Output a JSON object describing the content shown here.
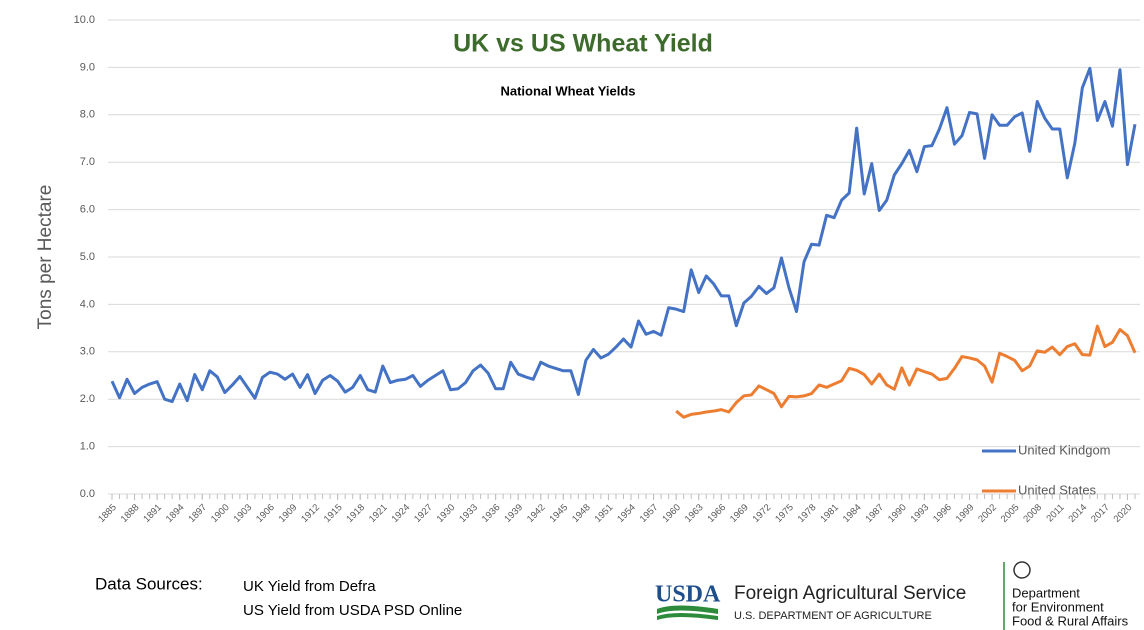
{
  "chart_data": {
    "type": "line",
    "title": "UK vs US Wheat Yield",
    "subtitle": "National Wheat Yields",
    "y_label": "Tons per Hectare",
    "x": [
      1885,
      1886,
      1887,
      1888,
      1889,
      1890,
      1891,
      1892,
      1893,
      1894,
      1895,
      1896,
      1897,
      1898,
      1899,
      1900,
      1901,
      1902,
      1903,
      1904,
      1905,
      1906,
      1907,
      1908,
      1909,
      1910,
      1911,
      1912,
      1913,
      1914,
      1915,
      1916,
      1917,
      1918,
      1919,
      1920,
      1921,
      1922,
      1923,
      1924,
      1925,
      1926,
      1927,
      1928,
      1929,
      1930,
      1931,
      1932,
      1933,
      1934,
      1935,
      1936,
      1937,
      1938,
      1939,
      1940,
      1941,
      1942,
      1943,
      1944,
      1945,
      1946,
      1947,
      1948,
      1949,
      1950,
      1951,
      1952,
      1953,
      1954,
      1955,
      1956,
      1957,
      1958,
      1959,
      1960,
      1961,
      1962,
      1963,
      1964,
      1965,
      1966,
      1967,
      1968,
      1969,
      1970,
      1971,
      1972,
      1973,
      1974,
      1975,
      1976,
      1977,
      1978,
      1979,
      1980,
      1981,
      1982,
      1983,
      1984,
      1985,
      1986,
      1987,
      1988,
      1989,
      1990,
      1991,
      1992,
      1993,
      1994,
      1995,
      1996,
      1997,
      1998,
      1999,
      2000,
      2001,
      2002,
      2003,
      2004,
      2005,
      2006,
      2007,
      2008,
      2009,
      2010,
      2011,
      2012,
      2013,
      2014,
      2015,
      2016,
      2017,
      2018,
      2019,
      2020,
      2021
    ],
    "series": [
      {
        "name": "United Kindgom",
        "color": "#4472c4",
        "values": [
          2.38,
          2.03,
          2.42,
          2.12,
          2.25,
          2.32,
          2.37,
          2.0,
          1.95,
          2.32,
          1.97,
          2.52,
          2.2,
          2.6,
          2.47,
          2.14,
          2.3,
          2.48,
          2.25,
          2.02,
          2.46,
          2.57,
          2.53,
          2.42,
          2.53,
          2.25,
          2.52,
          2.12,
          2.4,
          2.5,
          2.38,
          2.15,
          2.25,
          2.5,
          2.2,
          2.15,
          2.7,
          2.35,
          2.4,
          2.42,
          2.5,
          2.27,
          2.4,
          2.5,
          2.6,
          2.2,
          2.22,
          2.35,
          2.6,
          2.72,
          2.55,
          2.22,
          2.22,
          2.78,
          2.53,
          2.47,
          2.42,
          2.78,
          2.7,
          2.65,
          2.6,
          2.6,
          2.1,
          2.82,
          3.05,
          2.87,
          2.95,
          3.1,
          3.27,
          3.1,
          3.65,
          3.37,
          3.43,
          3.35,
          3.93,
          3.9,
          3.85,
          4.73,
          4.25,
          4.6,
          4.43,
          4.18,
          4.18,
          3.55,
          4.03,
          4.17,
          4.38,
          4.23,
          4.35,
          4.98,
          4.35,
          3.85,
          4.9,
          5.27,
          5.25,
          5.88,
          5.83,
          6.2,
          6.35,
          7.72,
          6.33,
          6.97,
          5.98,
          6.2,
          6.73,
          6.97,
          7.25,
          6.8,
          7.33,
          7.35,
          7.7,
          8.15,
          7.38,
          7.56,
          8.05,
          8.02,
          7.08,
          8.0,
          7.78,
          7.78,
          7.96,
          8.04,
          7.23,
          8.28,
          7.93,
          7.7,
          7.7,
          6.67,
          7.4,
          8.57,
          8.98,
          7.88,
          8.28,
          7.76,
          8.95,
          6.95,
          7.8
        ]
      },
      {
        "name": "United States",
        "color": "#ed7d31",
        "values": [
          null,
          null,
          null,
          null,
          null,
          null,
          null,
          null,
          null,
          null,
          null,
          null,
          null,
          null,
          null,
          null,
          null,
          null,
          null,
          null,
          null,
          null,
          null,
          null,
          null,
          null,
          null,
          null,
          null,
          null,
          null,
          null,
          null,
          null,
          null,
          null,
          null,
          null,
          null,
          null,
          null,
          null,
          null,
          null,
          null,
          null,
          null,
          null,
          null,
          null,
          null,
          null,
          null,
          null,
          null,
          null,
          null,
          null,
          null,
          null,
          null,
          null,
          null,
          null,
          null,
          null,
          null,
          null,
          null,
          null,
          null,
          null,
          null,
          null,
          null,
          1.75,
          1.62,
          1.68,
          1.7,
          1.73,
          1.75,
          1.78,
          1.73,
          1.93,
          2.07,
          2.09,
          2.28,
          2.2,
          2.12,
          1.84,
          2.06,
          2.05,
          2.07,
          2.12,
          2.3,
          2.25,
          2.32,
          2.39,
          2.65,
          2.61,
          2.52,
          2.32,
          2.53,
          2.3,
          2.21,
          2.66,
          2.3,
          2.64,
          2.58,
          2.53,
          2.41,
          2.44,
          2.65,
          2.9,
          2.87,
          2.83,
          2.7,
          2.36,
          2.97,
          2.9,
          2.82,
          2.6,
          2.7,
          3.02,
          2.99,
          3.1,
          2.94,
          3.11,
          3.17,
          2.94,
          2.93,
          3.54,
          3.11,
          3.2,
          3.47,
          3.34,
          2.98
        ]
      }
    ],
    "xlim": [
      1885,
      2021
    ],
    "xticks": [
      1885,
      1888,
      1891,
      1894,
      1897,
      1900,
      1903,
      1906,
      1909,
      1912,
      1915,
      1918,
      1921,
      1924,
      1927,
      1930,
      1933,
      1936,
      1939,
      1942,
      1945,
      1948,
      1951,
      1954,
      1957,
      1960,
      1963,
      1966,
      1969,
      1972,
      1975,
      1978,
      1981,
      1984,
      1987,
      1990,
      1993,
      1996,
      1999,
      2002,
      2005,
      2008,
      2011,
      2014,
      2017,
      2020
    ],
    "ylim": [
      0,
      10
    ],
    "yticks": [
      {
        "value": 0,
        "label": "0.0"
      },
      {
        "value": 1,
        "label": "1.0"
      },
      {
        "value": 2,
        "label": "2.0"
      },
      {
        "value": 3,
        "label": "3.0"
      },
      {
        "value": 4,
        "label": "4.0"
      },
      {
        "value": 5,
        "label": "5.0"
      },
      {
        "value": 6,
        "label": "6.0"
      },
      {
        "value": 7,
        "label": "7.0"
      },
      {
        "value": 8,
        "label": "8.0"
      },
      {
        "value": 9,
        "label": "9.0"
      },
      {
        "value": 10,
        "label": "10.0"
      }
    ],
    "grid": true,
    "legend": "lower right"
  },
  "footer": {
    "sources_label": "Data Sources:",
    "sources": [
      "UK Yield from Defra",
      "US Yield from USDA PSD Online"
    ],
    "usda": {
      "mark": "USDA",
      "name": "Foreign Agricultural Service",
      "dept": "U.S. DEPARTMENT OF AGRICULTURE"
    },
    "defra": [
      "Department",
      "for Environment",
      "Food & Rural Affairs"
    ]
  }
}
